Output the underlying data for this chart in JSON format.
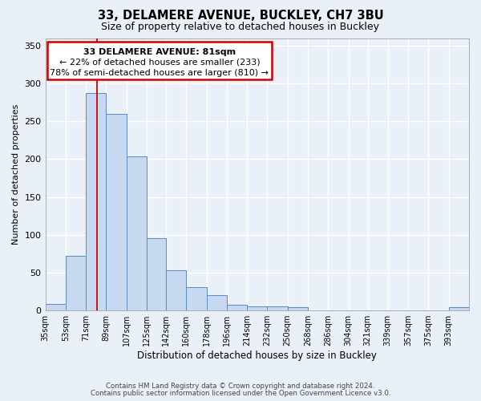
{
  "title": "33, DELAMERE AVENUE, BUCKLEY, CH7 3BU",
  "subtitle": "Size of property relative to detached houses in Buckley",
  "xlabel": "Distribution of detached houses by size in Buckley",
  "ylabel": "Number of detached properties",
  "footer_line1": "Contains HM Land Registry data © Crown copyright and database right 2024.",
  "footer_line2": "Contains public sector information licensed under the Open Government Licence v3.0.",
  "bar_labels": [
    "35sqm",
    "53sqm",
    "71sqm",
    "89sqm",
    "107sqm",
    "125sqm",
    "142sqm",
    "160sqm",
    "178sqm",
    "196sqm",
    "214sqm",
    "232sqm",
    "250sqm",
    "268sqm",
    "286sqm",
    "304sqm",
    "321sqm",
    "339sqm",
    "357sqm",
    "375sqm",
    "393sqm"
  ],
  "bar_values": [
    9,
    72,
    287,
    260,
    204,
    96,
    53,
    31,
    20,
    8,
    5,
    5,
    4,
    0,
    0,
    0,
    0,
    0,
    0,
    0,
    4
  ],
  "bar_color": "#c6d9f1",
  "bar_edge_color": "#5a8abf",
  "vline_x": 81,
  "vline_color": "#cc0000",
  "annotation_title": "33 DELAMERE AVENUE: 81sqm",
  "annotation_line2": "← 22% of detached houses are smaller (233)",
  "annotation_line3": "78% of semi-detached houses are larger (810) →",
  "annotation_box_color": "#cc0000",
  "ylim": [
    0,
    360
  ],
  "yticks": [
    0,
    50,
    100,
    150,
    200,
    250,
    300,
    350
  ],
  "background_color": "#eaf0f8",
  "grid_color": "#ffffff",
  "bin_edges": [
    35,
    53,
    71,
    89,
    107,
    125,
    142,
    160,
    178,
    196,
    214,
    232,
    250,
    268,
    286,
    304,
    321,
    339,
    357,
    375,
    393,
    411
  ]
}
